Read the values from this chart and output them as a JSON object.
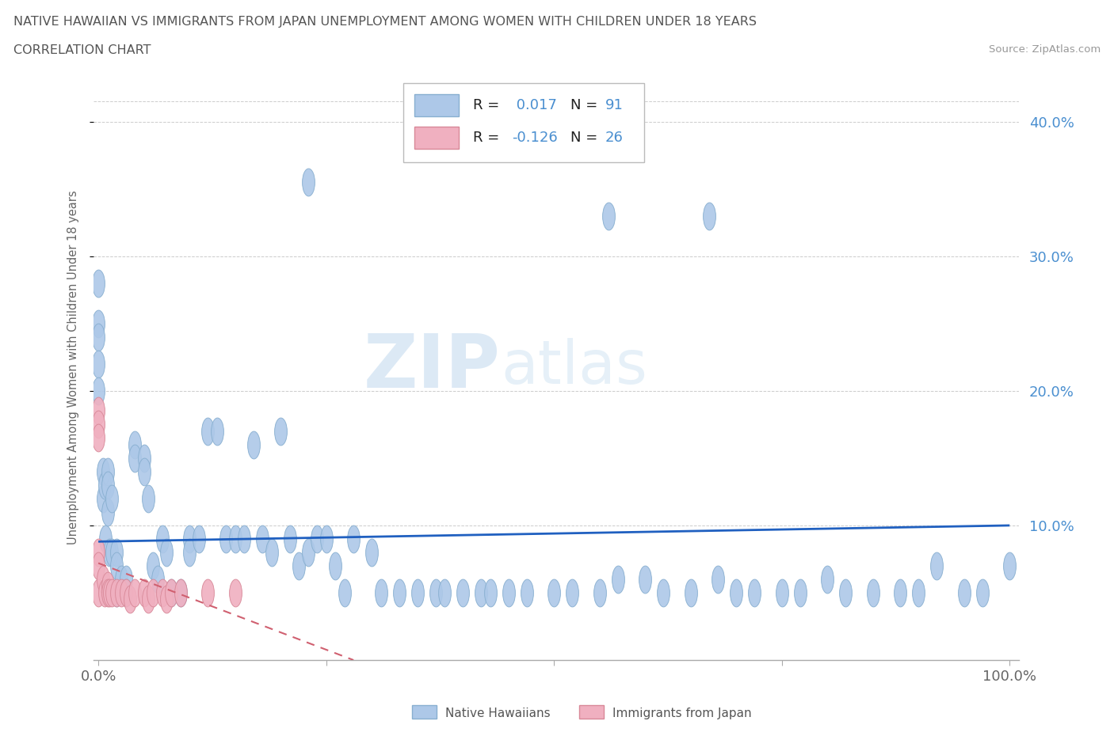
{
  "title_line1": "NATIVE HAWAIIAN VS IMMIGRANTS FROM JAPAN UNEMPLOYMENT AMONG WOMEN WITH CHILDREN UNDER 18 YEARS",
  "title_line2": "CORRELATION CHART",
  "source": "Source: ZipAtlas.com",
  "ylabel": "Unemployment Among Women with Children Under 18 years",
  "watermark_zip": "ZIP",
  "watermark_atlas": "atlas",
  "title_color": "#555555",
  "blue_dot_face": "#adc8e8",
  "blue_dot_edge": "#88afd0",
  "pink_dot_face": "#f0b0c0",
  "pink_dot_edge": "#d88898",
  "blue_line_color": "#2060c0",
  "pink_line_color": "#d06070",
  "tick_color_blue": "#4a8fd0",
  "grid_color": "#cccccc",
  "xlim": [
    -0.005,
    1.01
  ],
  "ylim": [
    0.0,
    0.435
  ],
  "ytick_vals": [
    0.1,
    0.2,
    0.3,
    0.4
  ],
  "ytick_labels": [
    "10.0%",
    "20.0%",
    "30.0%",
    "40.0%"
  ],
  "blue_trend_x": [
    0.0,
    1.0
  ],
  "blue_trend_y": [
    0.088,
    0.1
  ],
  "pink_trend_x": [
    0.0,
    0.28
  ],
  "pink_trend_y": [
    0.072,
    0.0
  ],
  "nh_x": [
    0.0,
    0.0,
    0.0,
    0.0,
    0.0,
    0.005,
    0.005,
    0.007,
    0.008,
    0.01,
    0.01,
    0.01,
    0.012,
    0.015,
    0.015,
    0.02,
    0.02,
    0.02,
    0.025,
    0.03,
    0.03,
    0.04,
    0.04,
    0.05,
    0.05,
    0.055,
    0.06,
    0.065,
    0.07,
    0.075,
    0.08,
    0.09,
    0.1,
    0.1,
    0.11,
    0.12,
    0.13,
    0.14,
    0.15,
    0.16,
    0.17,
    0.18,
    0.19,
    0.2,
    0.21,
    0.22,
    0.23,
    0.24,
    0.25,
    0.26,
    0.27,
    0.28,
    0.3,
    0.31,
    0.33,
    0.35,
    0.37,
    0.38,
    0.4,
    0.42,
    0.43,
    0.45,
    0.47,
    0.5,
    0.52,
    0.55,
    0.57,
    0.6,
    0.62,
    0.65,
    0.68,
    0.7,
    0.72,
    0.75,
    0.77,
    0.8,
    0.82,
    0.85,
    0.88,
    0.9,
    0.92,
    0.95,
    0.97,
    1.0,
    0.23,
    0.56,
    0.67
  ],
  "nh_y": [
    0.25,
    0.28,
    0.24,
    0.22,
    0.2,
    0.14,
    0.12,
    0.13,
    0.09,
    0.14,
    0.13,
    0.11,
    0.08,
    0.12,
    0.08,
    0.08,
    0.07,
    0.05,
    0.06,
    0.06,
    0.05,
    0.16,
    0.15,
    0.15,
    0.14,
    0.12,
    0.07,
    0.06,
    0.09,
    0.08,
    0.05,
    0.05,
    0.09,
    0.08,
    0.09,
    0.17,
    0.17,
    0.09,
    0.09,
    0.09,
    0.16,
    0.09,
    0.08,
    0.17,
    0.09,
    0.07,
    0.08,
    0.09,
    0.09,
    0.07,
    0.05,
    0.09,
    0.08,
    0.05,
    0.05,
    0.05,
    0.05,
    0.05,
    0.05,
    0.05,
    0.05,
    0.05,
    0.05,
    0.05,
    0.05,
    0.05,
    0.06,
    0.06,
    0.05,
    0.05,
    0.06,
    0.05,
    0.05,
    0.05,
    0.05,
    0.06,
    0.05,
    0.05,
    0.05,
    0.05,
    0.07,
    0.05,
    0.05,
    0.07,
    0.355,
    0.33,
    0.33
  ],
  "ij_x": [
    0.0,
    0.0,
    0.0,
    0.0,
    0.0,
    0.0,
    0.005,
    0.007,
    0.01,
    0.01,
    0.012,
    0.015,
    0.02,
    0.025,
    0.03,
    0.035,
    0.04,
    0.05,
    0.055,
    0.06,
    0.07,
    0.075,
    0.08,
    0.09,
    0.12,
    0.15
  ],
  "ij_y": [
    0.185,
    0.175,
    0.165,
    0.08,
    0.07,
    0.05,
    0.06,
    0.05,
    0.055,
    0.05,
    0.05,
    0.05,
    0.05,
    0.05,
    0.05,
    0.045,
    0.05,
    0.05,
    0.045,
    0.05,
    0.05,
    0.045,
    0.05,
    0.05,
    0.05,
    0.05
  ]
}
